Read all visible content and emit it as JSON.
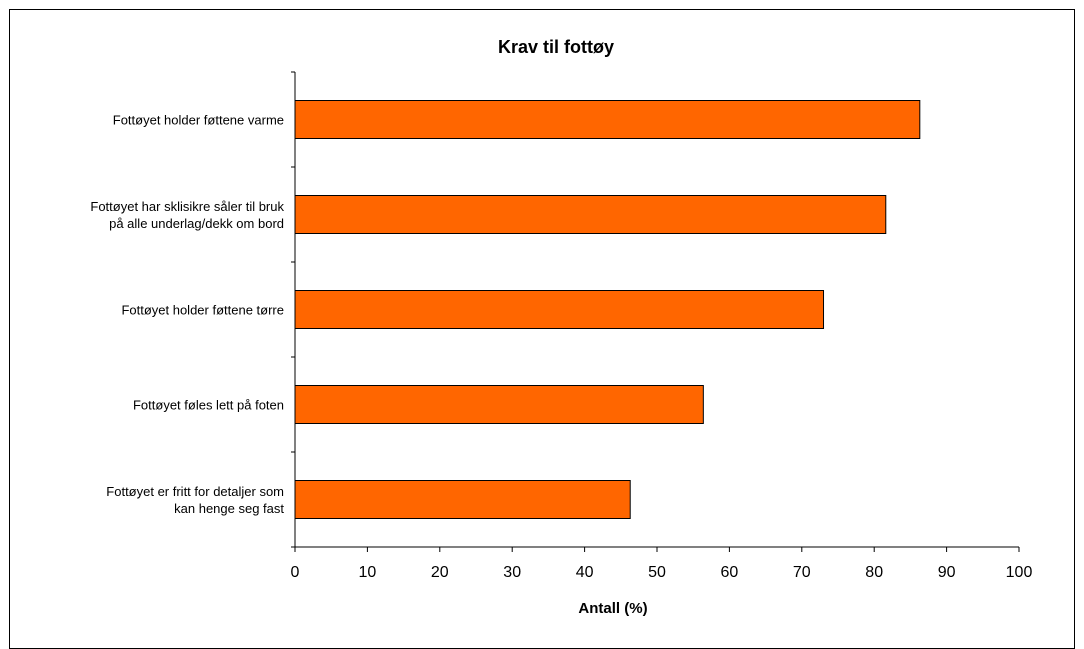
{
  "chart_data": {
    "type": "bar",
    "orientation": "horizontal",
    "title": "Krav til fottøy",
    "xlabel": "Antall (%)",
    "ylabel": "",
    "xlim": [
      0,
      100
    ],
    "xticks": [
      0,
      10,
      20,
      30,
      40,
      50,
      60,
      70,
      80,
      90,
      100
    ],
    "categories": [
      [
        "Fottøyet holder føttene varme"
      ],
      [
        "Fottøyet har sklisikre såler til bruk",
        "på alle underlag/dekk om bord"
      ],
      [
        "Fottøyet holder føttene tørre"
      ],
      [
        "Fottøyet føles lett på foten"
      ],
      [
        "Fottøyet er fritt for detaljer som",
        "kan henge seg fast"
      ]
    ],
    "values": [
      86.3,
      81.6,
      73.0,
      56.4,
      46.3
    ],
    "bar_color": "#FF6600",
    "grid": false,
    "legend": "none"
  }
}
